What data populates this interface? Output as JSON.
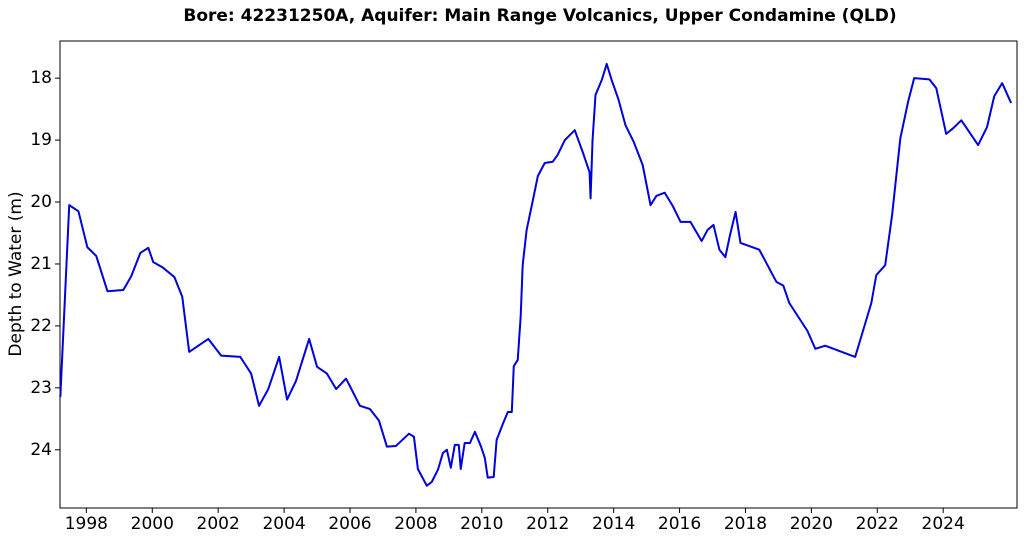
{
  "chart_data": {
    "type": "line",
    "title": "Bore: 42231250A,  Aquifer: Main Range Volcanics, Upper Condamine (QLD)",
    "y_label": "Depth to Water (m)",
    "x": [
      1997.21,
      1997.48,
      1997.76,
      1998.03,
      1998.3,
      1998.64,
      1999.12,
      1999.36,
      1999.64,
      1999.88,
      2000.03,
      2000.3,
      2000.67,
      2000.91,
      2001.12,
      2001.7,
      2002.09,
      2002.67,
      2003.0,
      2003.24,
      2003.52,
      2003.85,
      2004.09,
      2004.36,
      2004.76,
      2005.0,
      2005.3,
      2005.58,
      2005.88,
      2006.3,
      2006.6,
      2006.88,
      2007.12,
      2007.39,
      2007.79,
      2007.94,
      2008.06,
      2008.33,
      2008.48,
      2008.67,
      2008.82,
      2008.94,
      2009.06,
      2009.18,
      2009.3,
      2009.36,
      2009.48,
      2009.64,
      2009.79,
      2009.97,
      2010.09,
      2010.18,
      2010.36,
      2010.45,
      2010.64,
      2010.79,
      2010.91,
      2010.97,
      2011.09,
      2011.18,
      2011.24,
      2011.36,
      2011.55,
      2011.7,
      2011.91,
      2012.15,
      2012.3,
      2012.52,
      2012.82,
      2013.06,
      2013.27,
      2013.3,
      2013.36,
      2013.45,
      2013.64,
      2013.79,
      2013.94,
      2014.15,
      2014.36,
      2014.61,
      2014.88,
      2015.12,
      2015.3,
      2015.55,
      2015.79,
      2016.03,
      2016.33,
      2016.67,
      2016.85,
      2017.03,
      2017.21,
      2017.39,
      2017.52,
      2017.7,
      2017.85,
      2018.42,
      2018.94,
      2019.15,
      2019.33,
      2019.88,
      2020.12,
      2020.42,
      2021.33,
      2021.82,
      2021.97,
      2022.24,
      2022.45,
      2022.7,
      2022.94,
      2023.12,
      2023.58,
      2023.79,
      2024.09,
      2024.3,
      2024.55,
      2025.06,
      2025.33,
      2025.55,
      2025.79,
      2026.06
    ],
    "series": [
      {
        "name": "Depth to Water",
        "color": "#0000dd",
        "values": [
          23.15,
          20.05,
          20.15,
          20.73,
          20.87,
          21.44,
          21.42,
          21.2,
          20.82,
          20.74,
          20.97,
          21.05,
          21.21,
          21.53,
          22.42,
          22.21,
          22.48,
          22.5,
          22.77,
          23.29,
          23.02,
          22.5,
          23.19,
          22.89,
          22.21,
          22.66,
          22.77,
          23.02,
          22.85,
          23.29,
          23.34,
          23.53,
          23.95,
          23.94,
          23.74,
          23.79,
          24.31,
          24.58,
          24.52,
          24.32,
          24.05,
          24.0,
          24.29,
          23.92,
          23.92,
          24.31,
          23.89,
          23.89,
          23.71,
          23.94,
          24.13,
          24.45,
          24.44,
          23.84,
          23.58,
          23.39,
          23.39,
          22.65,
          22.55,
          21.84,
          21.02,
          20.45,
          19.97,
          19.58,
          19.37,
          19.35,
          19.24,
          19.0,
          18.84,
          19.19,
          19.52,
          19.94,
          19.0,
          18.27,
          18.03,
          17.77,
          18.03,
          18.35,
          18.76,
          19.03,
          19.4,
          20.05,
          19.9,
          19.85,
          20.06,
          20.32,
          20.32,
          20.63,
          20.45,
          20.37,
          20.77,
          20.89,
          20.56,
          20.16,
          20.66,
          20.77,
          21.29,
          21.35,
          21.63,
          22.08,
          22.37,
          22.32,
          22.5,
          21.63,
          21.18,
          21.02,
          20.21,
          18.97,
          18.37,
          18.0,
          18.02,
          18.16,
          18.9,
          18.81,
          18.68,
          19.08,
          18.79,
          18.29,
          18.08,
          18.4
        ]
      }
    ],
    "xlim": [
      1997.2,
      2026.24
    ],
    "xticks": [
      1998,
      2000,
      2002,
      2004,
      2006,
      2008,
      2010,
      2012,
      2014,
      2016,
      2018,
      2020,
      2022,
      2024
    ],
    "ylim": [
      24.94,
      17.4
    ],
    "yticks": [
      18,
      19,
      20,
      21,
      22,
      23,
      24
    ],
    "grid": false
  }
}
